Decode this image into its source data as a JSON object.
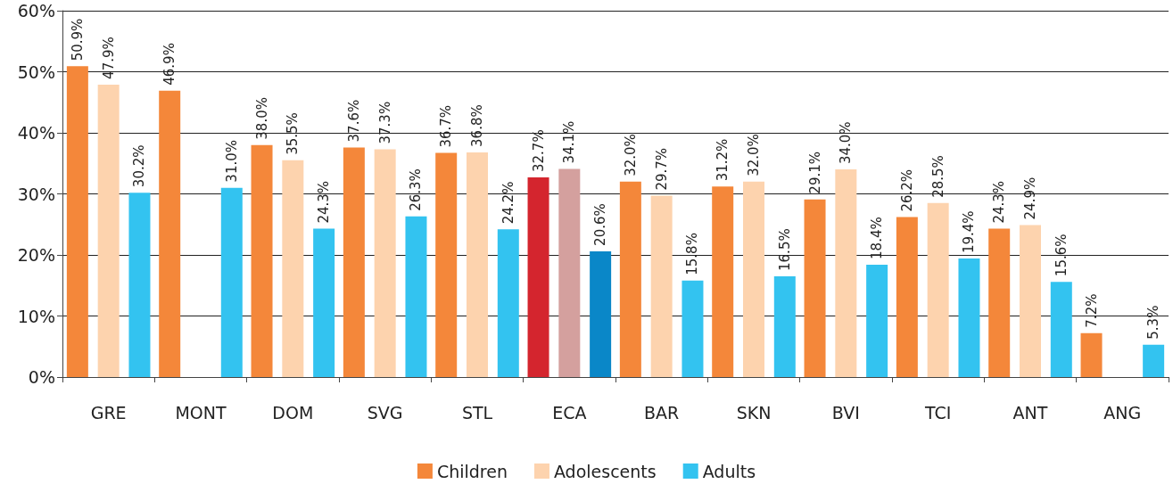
{
  "chart_data": {
    "type": "bar",
    "categories": [
      "GRE",
      "MONT",
      "DOM",
      "SVG",
      "STL",
      "ECA",
      "BAR",
      "SKN",
      "BVI",
      "TCI",
      "ANT",
      "ANG"
    ],
    "series": [
      {
        "name": "Children",
        "color": "#f4873a",
        "colors": [
          "#f4873a",
          "#f4873a",
          "#f4873a",
          "#f4873a",
          "#f4873a",
          "#d4252e",
          "#f4873a",
          "#f4873a",
          "#f4873a",
          "#f4873a",
          "#f4873a",
          "#f4873a"
        ],
        "values": [
          50.9,
          46.9,
          38.0,
          37.6,
          36.7,
          32.7,
          32.0,
          31.2,
          29.1,
          26.2,
          24.3,
          7.2
        ],
        "value_labels": [
          "50.9%",
          "46.9%",
          "38.0%",
          "37.6%",
          "36.7%",
          "32.7%",
          "32.0%",
          "31.2%",
          "29.1%",
          "26.2%",
          "24.3%",
          "7.2%"
        ]
      },
      {
        "name": "Adolescents",
        "color": "#fdd3ae",
        "colors": [
          "#fdd3ae",
          "#fdd3ae",
          "#fdd3ae",
          "#fdd3ae",
          "#fdd3ae",
          "#d4a09e",
          "#fdd3ae",
          "#fdd3ae",
          "#fdd3ae",
          "#fdd3ae",
          "#fdd3ae",
          "#fdd3ae"
        ],
        "values": [
          47.9,
          null,
          35.5,
          37.3,
          36.8,
          34.1,
          29.7,
          32.0,
          34.0,
          28.5,
          24.9,
          null
        ],
        "value_labels": [
          "47.9%",
          null,
          "35.5%",
          "37.3%",
          "36.8%",
          "34.1%",
          "29.7%",
          "32.0%",
          "34.0%",
          "28.5%",
          "24.9%",
          null
        ]
      },
      {
        "name": "Adults",
        "color": "#33c3f0",
        "colors": [
          "#33c3f0",
          "#33c3f0",
          "#33c3f0",
          "#33c3f0",
          "#33c3f0",
          "#0a87c8",
          "#33c3f0",
          "#33c3f0",
          "#33c3f0",
          "#33c3f0",
          "#33c3f0",
          "#33c3f0"
        ],
        "values": [
          30.2,
          31.0,
          24.3,
          26.3,
          24.2,
          20.6,
          15.8,
          16.5,
          18.4,
          19.4,
          15.6,
          5.3
        ],
        "value_labels": [
          "30.2%",
          "31.0%",
          "24.3%",
          "26.3%",
          "24.2%",
          "20.6%",
          "15.8%",
          "16.5%",
          "18.4%",
          "19.4%",
          "15.6%",
          "5.3%"
        ]
      }
    ],
    "ylim": [
      0,
      60
    ],
    "yticks": [
      {
        "value": 0,
        "label": "0%"
      },
      {
        "value": 10,
        "label": "10%"
      },
      {
        "value": 20,
        "label": "20%"
      },
      {
        "value": 30,
        "label": "30%"
      },
      {
        "value": 40,
        "label": "40%"
      },
      {
        "value": 50,
        "label": "50%"
      },
      {
        "value": 60,
        "label": "60%"
      }
    ],
    "grid": "y",
    "legend": "bottom"
  }
}
